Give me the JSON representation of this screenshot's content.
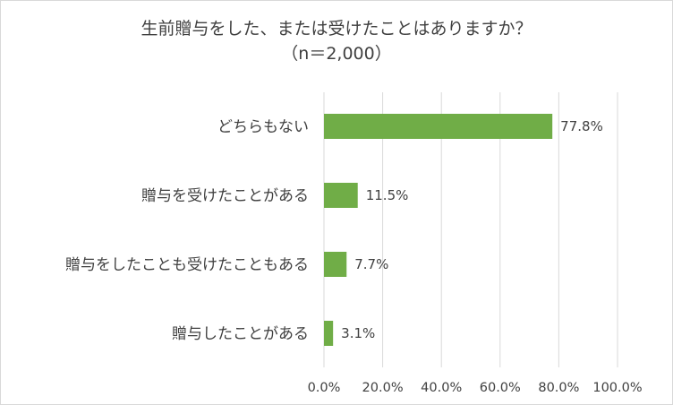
{
  "chart_data": {
    "type": "bar",
    "orientation": "horizontal",
    "title": "生前贈与をした、または受けたことはありますか？",
    "subtitle": "（n＝2,000）",
    "categories": [
      "どちらもない",
      "贈与を受けたことがある",
      "贈与をしたことも受けたこともある",
      "贈与したことがある"
    ],
    "values": [
      77.8,
      11.5,
      7.7,
      3.1
    ],
    "value_labels": [
      "77.8%",
      "11.5%",
      "7.7%",
      "3.1%"
    ],
    "xlim": [
      0,
      100
    ],
    "x_ticks": [
      0,
      20,
      40,
      60,
      80,
      100
    ],
    "x_tick_labels": [
      "0.0%",
      "20.0%",
      "40.0%",
      "60.0%",
      "80.0%",
      "100.0%"
    ],
    "grid": "vertical",
    "bar_color": "#70ad47",
    "xlabel": "",
    "ylabel": ""
  }
}
